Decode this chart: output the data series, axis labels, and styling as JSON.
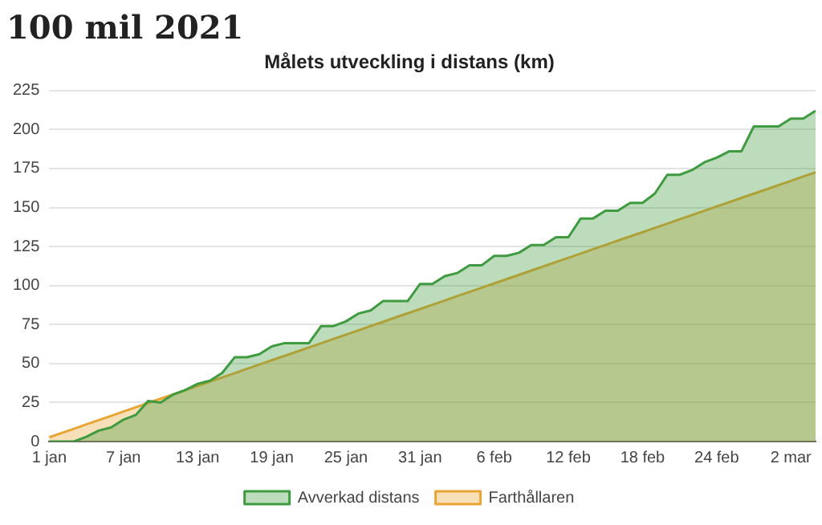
{
  "chart_data": {
    "type": "area",
    "title": "100 mil 2021",
    "subtitle": "Målets utveckling i distans (km)",
    "categories": [
      "1 jan",
      null,
      null,
      null,
      null,
      null,
      "7 jan",
      null,
      null,
      null,
      null,
      null,
      "13 jan",
      null,
      null,
      null,
      null,
      null,
      "19 jan",
      null,
      null,
      null,
      null,
      null,
      "25 jan",
      null,
      null,
      null,
      null,
      null,
      "31 jan",
      null,
      null,
      null,
      null,
      null,
      "6 feb",
      null,
      null,
      null,
      null,
      null,
      "12 feb",
      null,
      null,
      null,
      null,
      null,
      "18 feb",
      null,
      null,
      null,
      null,
      null,
      "24 feb",
      null,
      null,
      null,
      null,
      null,
      "2 mar",
      null,
      null
    ],
    "series": [
      {
        "name": "Avverkad distans",
        "color": "#3f9b3f",
        "values": [
          0,
          0,
          0,
          3,
          7,
          9,
          14,
          17,
          26,
          25,
          30,
          33,
          37,
          39,
          44,
          54,
          54,
          56,
          61,
          63,
          63,
          63,
          74,
          74,
          77,
          82,
          84,
          90,
          90,
          90,
          101,
          101,
          106,
          108,
          113,
          113,
          119,
          119,
          121,
          126,
          126,
          131,
          131,
          143,
          143,
          148,
          148,
          153,
          153,
          159,
          171,
          171,
          174,
          179,
          182,
          186,
          186,
          202,
          202,
          202,
          207,
          207,
          212
        ]
      },
      {
        "name": "Farthållaren",
        "color": "#e8a534",
        "values": [
          2.7,
          5.5,
          8.2,
          11.0,
          13.7,
          16.4,
          19.2,
          21.9,
          24.7,
          27.4,
          30.1,
          32.9,
          35.6,
          38.4,
          41.1,
          43.8,
          46.6,
          49.3,
          52.1,
          54.8,
          57.5,
          60.3,
          63.0,
          65.8,
          68.5,
          71.2,
          74.0,
          76.7,
          79.5,
          82.2,
          84.9,
          87.7,
          90.4,
          93.2,
          95.9,
          98.6,
          101.4,
          104.1,
          106.8,
          109.6,
          112.3,
          115.1,
          117.8,
          120.5,
          123.3,
          126.0,
          128.8,
          131.5,
          134.2,
          137.0,
          139.7,
          142.5,
          145.2,
          147.9,
          150.7,
          153.4,
          156.2,
          158.9,
          161.6,
          164.4,
          167.1,
          169.9,
          172.6
        ]
      }
    ],
    "ylim": [
      0,
      225
    ],
    "yticks": [
      0,
      25,
      50,
      75,
      100,
      125,
      150,
      175,
      200,
      225
    ],
    "grid": "y",
    "legend": "bottom"
  }
}
